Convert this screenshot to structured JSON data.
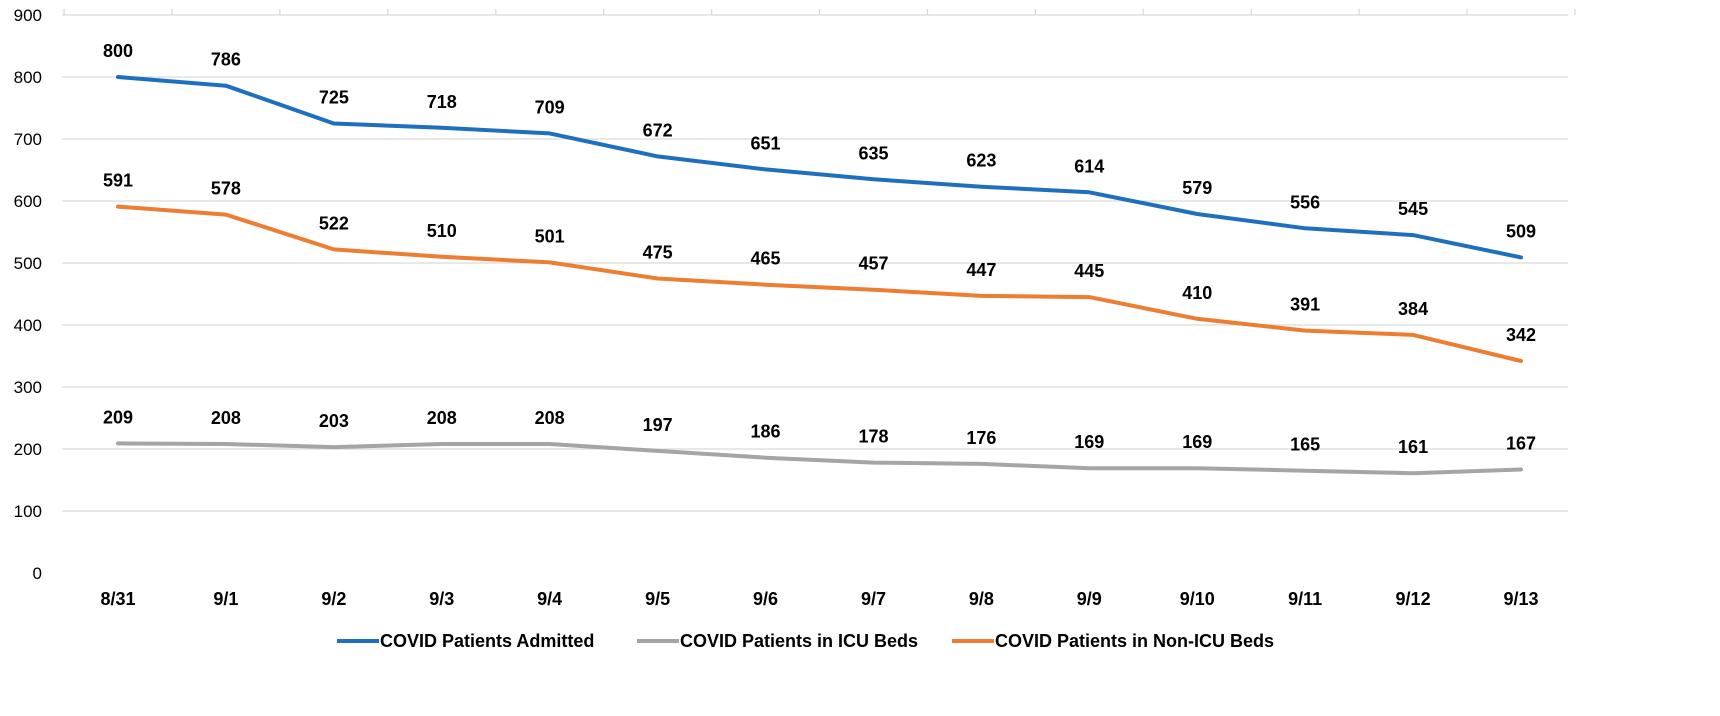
{
  "chart_data": {
    "type": "line",
    "title": "",
    "xlabel": "",
    "ylabel": "",
    "ylim": [
      0,
      900
    ],
    "yticks": [
      0,
      100,
      200,
      300,
      400,
      500,
      600,
      700,
      800,
      900
    ],
    "grid": "horizontal",
    "legend_position": "bottom",
    "categories": [
      "8/31",
      "9/1",
      "9/2",
      "9/3",
      "9/4",
      "9/5",
      "9/6",
      "9/7",
      "9/8",
      "9/9",
      "9/10",
      "9/11",
      "9/12",
      "9/13"
    ],
    "series": [
      {
        "name": "COVID Patients Admitted",
        "color": "#1f6fbf",
        "values": [
          800,
          786,
          725,
          718,
          709,
          672,
          651,
          635,
          623,
          614,
          579,
          556,
          545,
          509
        ]
      },
      {
        "name": "COVID Patients in ICU Beds",
        "color": "#a5a5a5",
        "values": [
          209,
          208,
          203,
          208,
          208,
          197,
          186,
          178,
          176,
          169,
          169,
          165,
          161,
          167
        ]
      },
      {
        "name": "COVID Patients in Non-ICU Beds",
        "color": "#ed7d31",
        "values": [
          591,
          578,
          522,
          510,
          501,
          475,
          465,
          457,
          447,
          445,
          410,
          391,
          384,
          342
        ]
      }
    ]
  }
}
